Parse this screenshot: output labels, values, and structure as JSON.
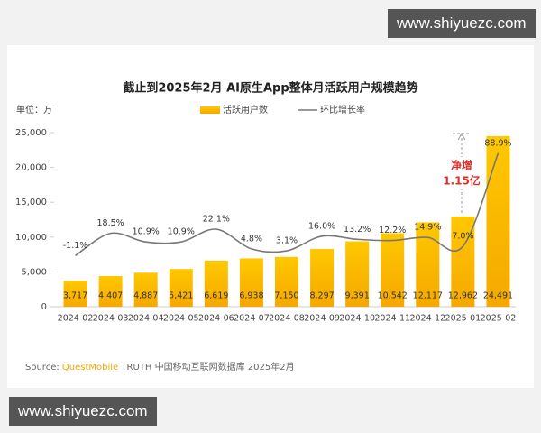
{
  "watermarks": [
    "www.shiyuezc.com",
    "www.shiyuezc.com"
  ],
  "chart_data": {
    "type": "bar",
    "title": "截止到2025年2月 AI原生App整体月活跃用户规模趋势",
    "unit_label": "单位：万",
    "categories": [
      "2024-02",
      "2024-03",
      "2024-04",
      "2024-05",
      "2024-06",
      "2024-07",
      "2024-08",
      "2024-09",
      "2024-10",
      "2024-11",
      "2024-12",
      "2025-01",
      "2025-02"
    ],
    "series": [
      {
        "name": "活跃用户数",
        "type": "bar",
        "color": "#f5b800",
        "values": [
          3717,
          4407,
          4887,
          5421,
          6619,
          6938,
          7150,
          8297,
          9391,
          10542,
          12117,
          12962,
          24491
        ],
        "value_labels": [
          "3,717",
          "4,407",
          "4,887",
          "5,421",
          "6,619",
          "6,938",
          "7,150",
          "8,297",
          "9,391",
          "10,542",
          "12,117",
          "12,962",
          "24,491"
        ]
      },
      {
        "name": "环比增长率",
        "type": "line",
        "axis": "y2",
        "color": "#777777",
        "values": [
          -1.1,
          18.5,
          10.9,
          10.9,
          22.1,
          4.8,
          3.1,
          16.0,
          13.2,
          12.2,
          14.9,
          7.0,
          88.9
        ],
        "value_labels": [
          "-1.1%",
          "18.5%",
          "10.9%",
          "10.9%",
          "22.1%",
          "4.8%",
          "3.1%",
          "16.0%",
          "13.2%",
          "12.2%",
          "14.9%",
          "7.0%",
          "88.9%"
        ]
      }
    ],
    "ylim": [
      0,
      25000
    ],
    "yticks": [
      0,
      {
        "value": 5000,
        "label": "5,000"
      },
      {
        "value": 10000,
        "label": "10,000"
      },
      {
        "value": 15000,
        "label": "15,000"
      },
      {
        "value": 20000,
        "label": "20,000"
      },
      {
        "value": 25000,
        "label": "25,000"
      }
    ],
    "y2lim": [
      -46,
      107
    ],
    "grid": false,
    "legend": "top",
    "annotation": [
      "净增",
      "1.15亿"
    ],
    "source": [
      "Source:",
      "QuestMobile",
      "TRUTH 中国移动互联网数据库 2025年2月"
    ]
  }
}
